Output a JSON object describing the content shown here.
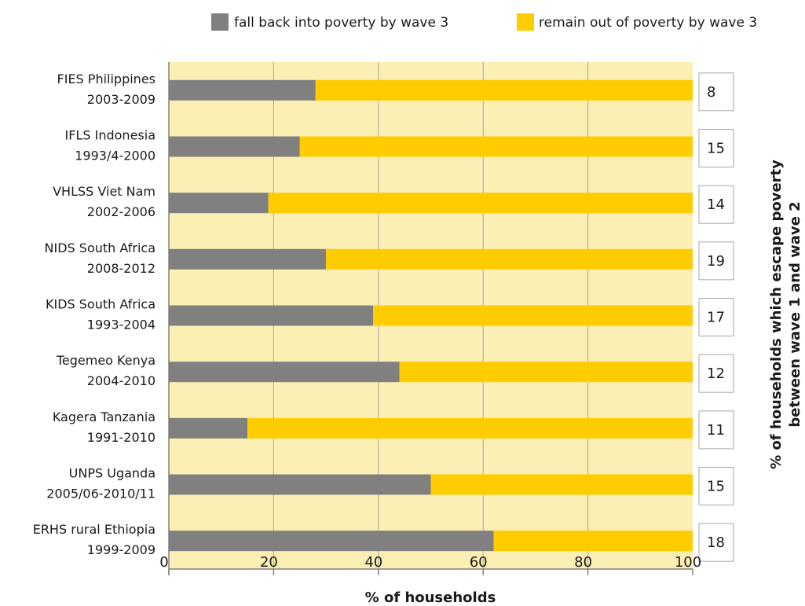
{
  "chart_data": {
    "type": "bar",
    "stacked": true,
    "orientation": "horizontal",
    "categories": [
      [
        "FIES Philippines",
        "2003-2009"
      ],
      [
        "IFLS Indonesia",
        "1993/4-2000"
      ],
      [
        "VHLSS Viet Nam",
        "2002-2006"
      ],
      [
        "NIDS South Africa",
        "2008-2012"
      ],
      [
        "KIDS South Africa",
        "1993-2004"
      ],
      [
        "Tegemeo Kenya",
        "2004-2010"
      ],
      [
        "Kagera Tanzania",
        "1991-2010"
      ],
      [
        "UNPS Uganda",
        "2005/06-2010/11"
      ],
      [
        "ERHS rural Ethiopia",
        "1999-2009"
      ]
    ],
    "series": [
      {
        "name": "fall back into poverty by wave 3",
        "color": "#808080",
        "values": [
          28,
          25,
          19,
          30,
          39,
          44,
          15,
          50,
          62
        ]
      },
      {
        "name": "remain out of poverty by wave 3",
        "color": "#ffcc00",
        "values": [
          72,
          75,
          81,
          70,
          61,
          56,
          85,
          50,
          38
        ]
      }
    ],
    "side_values": [
      "8",
      "15",
      "14",
      "19",
      "17",
      "12",
      "11",
      "15",
      "18"
    ],
    "xlabel": "% of households",
    "ylabel_right": [
      "% of households which escape poverty",
      "between wave 1 and wave 2"
    ],
    "xlim": [
      0,
      100
    ],
    "xticks": [
      "0",
      "20",
      "40",
      "60",
      "80",
      "100"
    ],
    "legend_position": "top",
    "plot_background": "#fcefb4",
    "grid": true
  }
}
